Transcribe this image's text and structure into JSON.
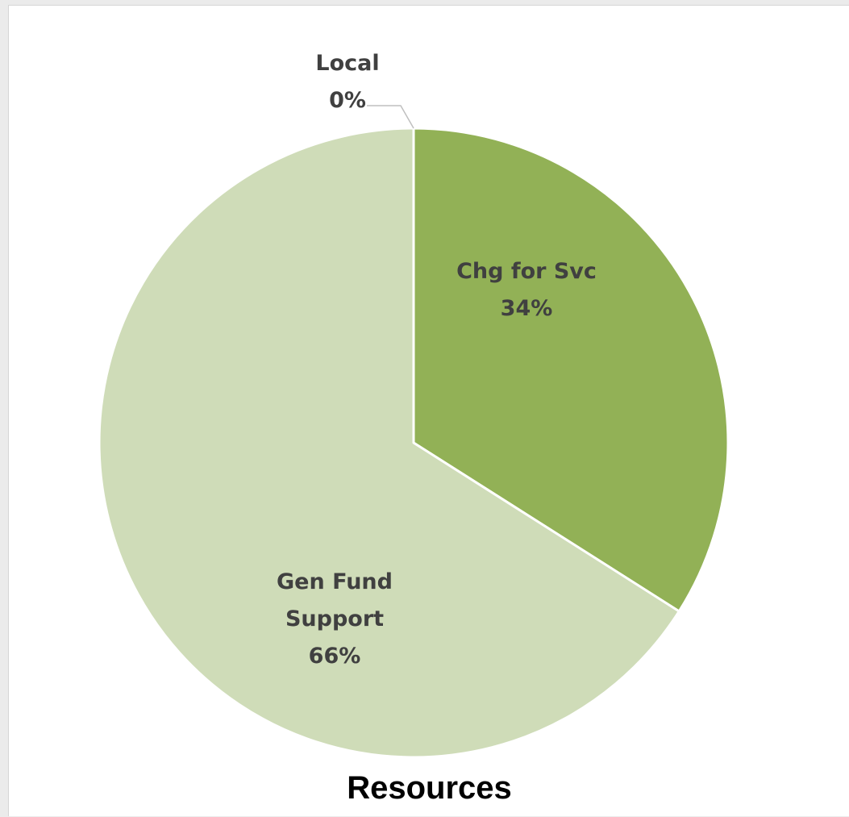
{
  "chart_data": {
    "type": "pie",
    "title": "Resources",
    "slices": [
      {
        "label_lines": [
          "Chg for Svc"
        ],
        "percent_text": "34%",
        "value": 34,
        "color": "#92b156"
      },
      {
        "label_lines": [
          "Gen Fund",
          "Support"
        ],
        "percent_text": "66%",
        "value": 66,
        "color": "#cfdcb8"
      },
      {
        "label_lines": [
          "Local"
        ],
        "percent_text": "0%",
        "value": 0,
        "color": "#92b156"
      }
    ],
    "legend": "none",
    "data_labels": "category name and percentage"
  },
  "colors": {
    "slice_border": "#ffffff",
    "label_text": "#404040",
    "leader_line": "#bfbfbf",
    "title_text": "#000000"
  }
}
